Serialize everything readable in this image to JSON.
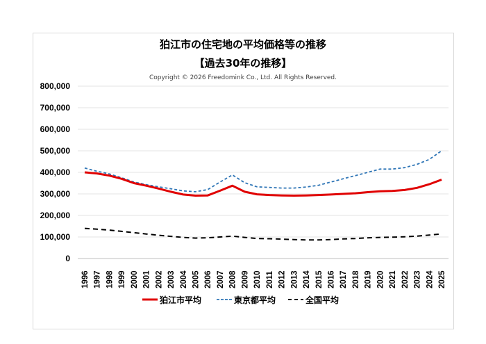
{
  "chart_data": {
    "type": "line",
    "title": "狛江市の住宅地の平均価格等の推移",
    "subtitle": "【過去30年の推移】",
    "copyright": "Copyright © 2026 Freedomink Co., Ltd. All Rights Reserved.",
    "xlabel": "",
    "ylabel": "",
    "ylim": [
      0,
      800000
    ],
    "yticks": [
      "0",
      "100,000",
      "200,000",
      "300,000",
      "400,000",
      "500,000",
      "600,000",
      "700,000",
      "800,000"
    ],
    "grid": true,
    "legend": "bottom",
    "categories": [
      "1996",
      "1997",
      "1998",
      "1999",
      "2000",
      "2001",
      "2002",
      "2003",
      "2004",
      "2005",
      "2006",
      "2007",
      "2008",
      "2009",
      "2010",
      "2011",
      "2012",
      "2013",
      "2014",
      "2015",
      "2016",
      "2017",
      "2018",
      "2019",
      "2020",
      "2021",
      "2022",
      "2023",
      "2024",
      "2025"
    ],
    "series": [
      {
        "name": "狛江市平均",
        "color": "#e00000",
        "style": "solid",
        "values": [
          400000,
          395000,
          385000,
          370000,
          350000,
          338000,
          325000,
          310000,
          297000,
          292000,
          293000,
          315000,
          338000,
          310000,
          298000,
          295000,
          293000,
          292000,
          293000,
          295000,
          297000,
          300000,
          303000,
          308000,
          312000,
          314000,
          318000,
          328000,
          345000,
          366000
        ]
      },
      {
        "name": "東京都平均",
        "color": "#2e75b6",
        "style": "dotted",
        "values": [
          420000,
          405000,
          393000,
          375000,
          355000,
          343000,
          333000,
          324000,
          314000,
          310000,
          320000,
          355000,
          388000,
          352000,
          333000,
          330000,
          327000,
          327000,
          332000,
          340000,
          355000,
          370000,
          385000,
          400000,
          415000,
          415000,
          422000,
          437000,
          460000,
          500000
        ]
      },
      {
        "name": "全国平均",
        "color": "#000000",
        "style": "dashed",
        "values": [
          140000,
          136000,
          132000,
          126000,
          120000,
          114000,
          108000,
          103000,
          98000,
          95000,
          96000,
          100000,
          104000,
          98000,
          93000,
          92000,
          90000,
          88000,
          86000,
          86000,
          88000,
          91000,
          93000,
          96000,
          98000,
          99000,
          101000,
          104000,
          109000,
          114000
        ]
      }
    ]
  }
}
